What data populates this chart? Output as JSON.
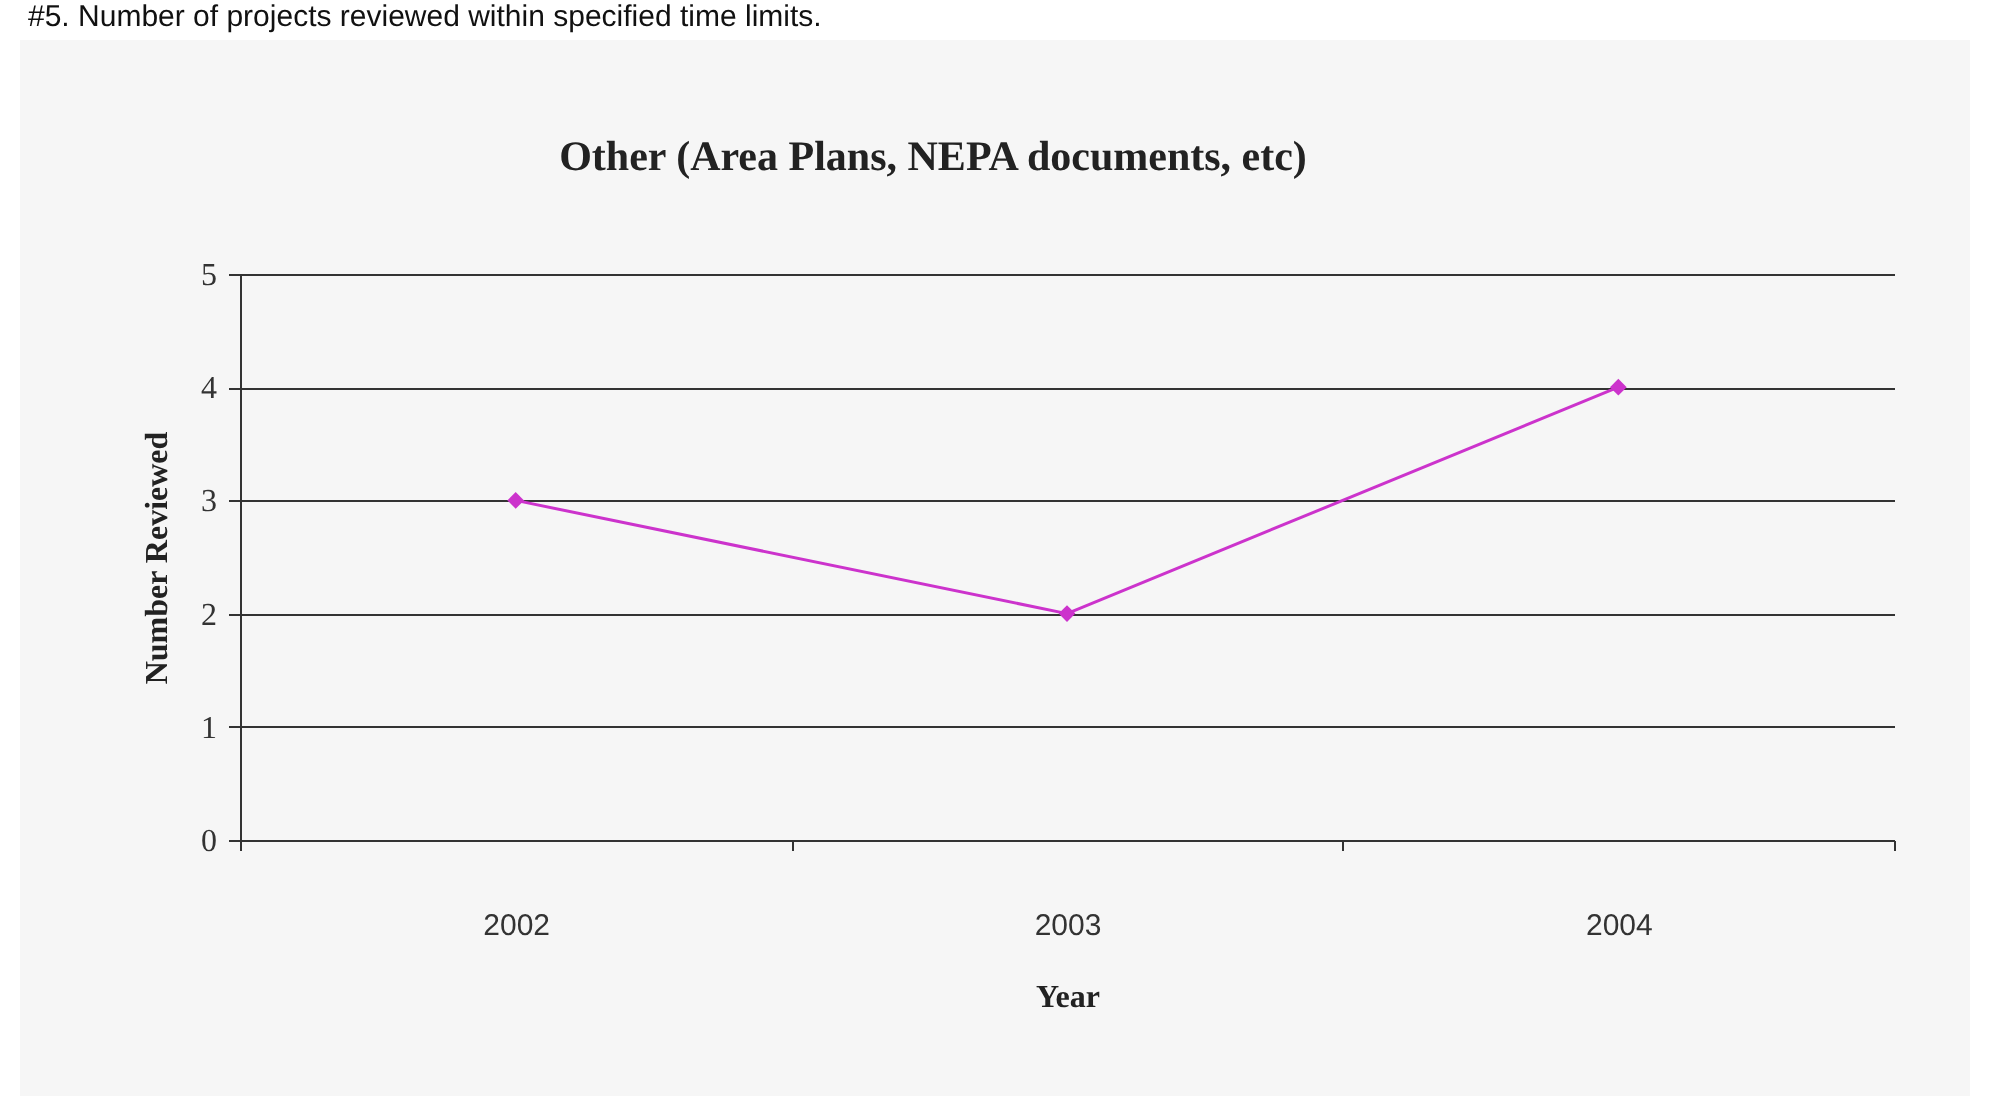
{
  "chart_data": {
    "type": "line",
    "title": "Other (Area Plans, NEPA documents, etc)",
    "xlabel": "Year",
    "ylabel": "Number Reviewed",
    "annotations": [
      "#5. Number of projects reviewed within specified time limits."
    ],
    "categories": [
      "2002",
      "2003",
      "2004"
    ],
    "series": [
      {
        "color": "#cc33cc",
        "values": [
          3,
          2,
          4
        ]
      }
    ],
    "ylim": [
      0,
      5
    ],
    "yticks": [
      0,
      1,
      2,
      3,
      4,
      5
    ],
    "grid": "y",
    "marker": "diamond",
    "line_style": "solid"
  }
}
